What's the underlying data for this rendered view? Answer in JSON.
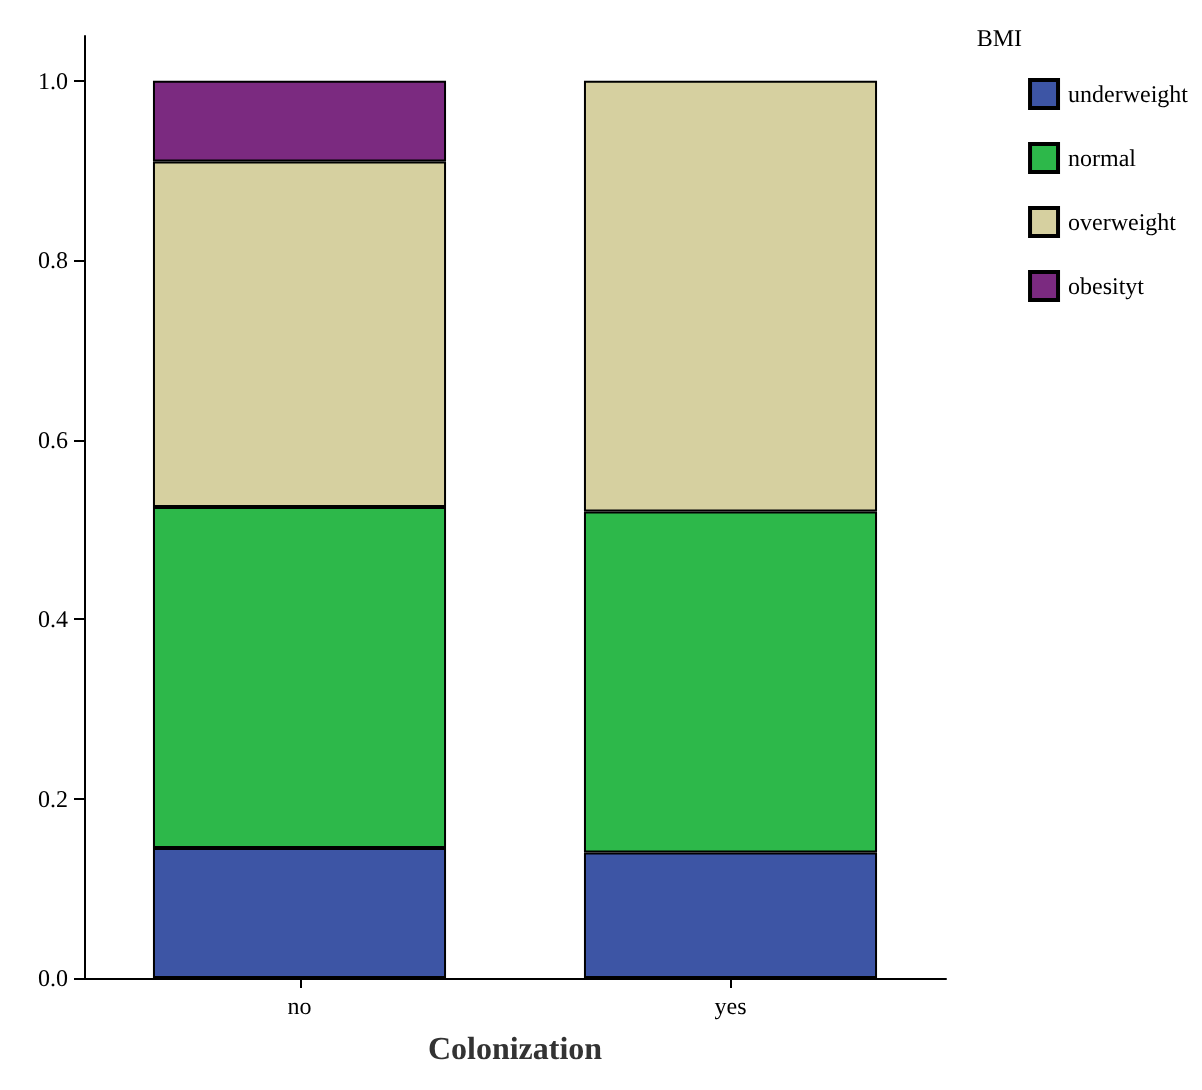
{
  "chart_data": {
    "type": "bar",
    "stacked": true,
    "xlabel": "Colonization",
    "legend_title": "BMI",
    "legend": "top right",
    "grid": false,
    "categories": [
      "no",
      "yes"
    ],
    "series": [
      {
        "name": "underweight",
        "color": "#3d55a5",
        "values": [
          0.145,
          0.14
        ]
      },
      {
        "name": "normal",
        "color": "#2db84a",
        "values": [
          0.38,
          0.38
        ]
      },
      {
        "name": "overweight",
        "color": "#d6d0a0",
        "values": [
          0.385,
          0.48
        ]
      },
      {
        "name": "obesityt",
        "color": "#7b2a80",
        "values": [
          0.09,
          null
        ]
      }
    ],
    "ylim": [
      0,
      1.05
    ],
    "yticks": [
      {
        "value": 0,
        "label": "0.0"
      },
      {
        "value": 0.2,
        "label": "0.2"
      },
      {
        "value": 0.4,
        "label": "0.4"
      },
      {
        "value": 0.6,
        "label": "0.6"
      },
      {
        "value": 0.8,
        "label": "0.8"
      },
      {
        "value": 1,
        "label": "1.0"
      }
    ]
  }
}
